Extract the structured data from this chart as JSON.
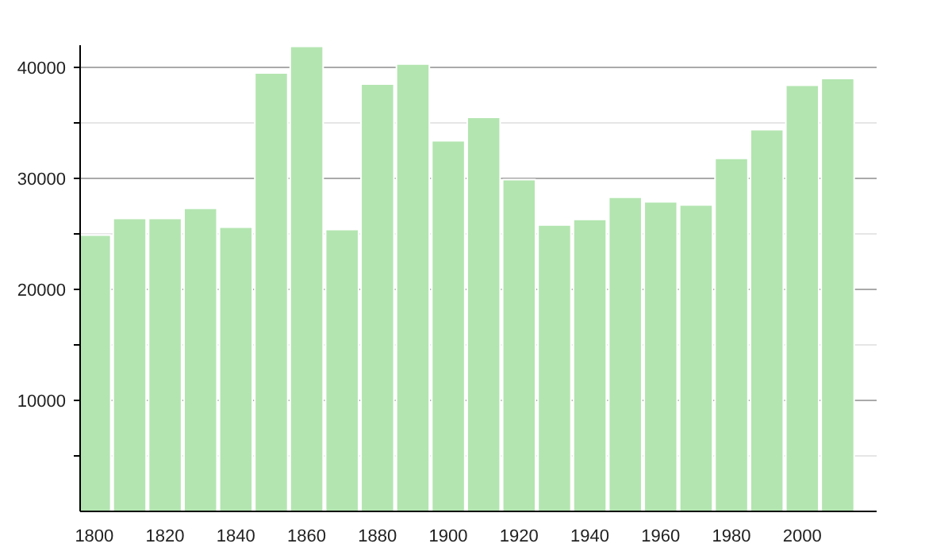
{
  "chart_data": {
    "type": "bar",
    "x": [
      1800,
      1810,
      1820,
      1830,
      1840,
      1850,
      1860,
      1870,
      1880,
      1890,
      1900,
      1910,
      1920,
      1930,
      1940,
      1950,
      1960,
      1970,
      1980,
      1990,
      2000,
      2010
    ],
    "values": [
      24900,
      26400,
      26400,
      27300,
      25600,
      39500,
      41900,
      25400,
      38500,
      40300,
      33400,
      35500,
      29900,
      25800,
      26300,
      28300,
      27900,
      27600,
      31800,
      34400,
      38400,
      39000
    ],
    "color": "#b3e5b0",
    "xlim": [
      1796,
      2021
    ],
    "ylim": [
      0,
      42000
    ],
    "xticks": [
      1800,
      1820,
      1840,
      1860,
      1880,
      1900,
      1920,
      1940,
      1960,
      1980,
      2000
    ],
    "yticks": [
      {
        "value": 5000,
        "label": null
      },
      10000,
      {
        "value": 15000,
        "label": null
      },
      20000,
      {
        "value": 25000,
        "label": null
      },
      30000,
      {
        "value": 35000,
        "label": null
      },
      40000
    ],
    "grid": "y"
  }
}
